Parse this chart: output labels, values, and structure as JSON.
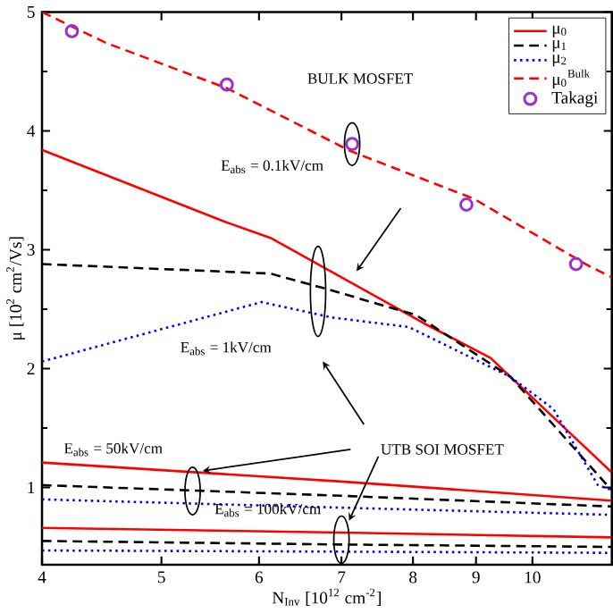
{
  "chart_data": {
    "type": "line",
    "xlabel": "N$_{Inv}$ [10$^{12}$ cm$^{-2}$]",
    "ylabel": "μ [10$^{2}$ cm$^{2}$/Vs]",
    "log": "x",
    "xlim": [
      4,
      11.6
    ],
    "ylim": [
      0.35,
      5
    ],
    "xticks": [
      4,
      5,
      6,
      7,
      8,
      9,
      10
    ],
    "yticks": [
      1,
      2,
      3,
      4,
      5
    ],
    "grid": false,
    "legend": "top right",
    "marker": "none",
    "annotations": [
      "BULK MOSFET",
      "E$_{abs}$ = 0.1kV/cm",
      "E$_{abs}$ = 1kV/cm",
      "UTB SOI MOSFET",
      "E$_{abs}$ = 50kV/cm",
      "E$_{abs}$ = 100kV/cm"
    ],
    "series": [
      {
        "name": "μ$_{0}$",
        "color": "#ff0000",
        "line_style": "solid",
        "x": [
          4,
          5.65,
          6.13,
          8.17,
          9.25,
          9.6,
          11.59
        ],
        "values": [
          3.84,
          3.23,
          3.1,
          2.38,
          2.09,
          1.93,
          1.13
        ]
      },
      {
        "name": "μ$_{1}$",
        "color": "#000000",
        "line_style": "dashed",
        "x": [
          4,
          6.13,
          6.81,
          8.05,
          9.6,
          11.59
        ],
        "values": [
          2.88,
          2.8,
          2.67,
          2.45,
          1.93,
          0.98
        ]
      },
      {
        "name": "μ$_{2}$",
        "color": "#0000ff",
        "line_style": "dotted",
        "x": [
          4,
          6.03,
          6.88,
          7.94,
          9.6,
          10.4,
          11.3,
          11.59
        ],
        "values": [
          2.06,
          2.56,
          2.43,
          2.35,
          1.93,
          1.66,
          1.02,
          0.98
        ]
      },
      {
        "name": "μ$_{0}$$^{Bulk}$",
        "color": "#ff0000",
        "line_style": "dashed",
        "x": [
          4,
          4.51,
          5.65,
          7.12,
          8.96,
          11.13,
          11.59
        ],
        "values": [
          5.0,
          4.74,
          4.36,
          3.83,
          3.43,
          2.86,
          2.77
        ]
      },
      {
        "name": "Takagi",
        "type": "scatter",
        "marker": "circle",
        "color": "#9b30d0",
        "x": [
          4.23,
          5.65,
          7.14,
          8.84,
          10.85
        ],
        "values": [
          4.84,
          4.39,
          3.89,
          3.38,
          2.88
        ]
      },
      {
        "color": "#ff0000",
        "line_style": "solid",
        "x": [
          4,
          7,
          11.59
        ],
        "values": [
          1.21,
          1.05,
          0.89
        ]
      },
      {
        "color": "#000000",
        "line_style": "dashed",
        "x": [
          4,
          7,
          11.59
        ],
        "values": [
          1.02,
          0.93,
          0.84
        ]
      },
      {
        "color": "#0000ff",
        "line_style": "dotted",
        "x": [
          4,
          7,
          11.59
        ],
        "values": [
          0.9,
          0.83,
          0.77
        ]
      },
      {
        "color": "#ff0000",
        "line_style": "solid",
        "x": [
          4,
          7,
          11.59
        ],
        "values": [
          0.66,
          0.62,
          0.58
        ]
      },
      {
        "color": "#000000",
        "line_style": "dashed",
        "x": [
          4,
          7,
          11.59
        ],
        "values": [
          0.55,
          0.52,
          0.5
        ]
      },
      {
        "color": "#0000ff",
        "line_style": "dotted",
        "x": [
          4,
          7,
          11.59
        ],
        "values": [
          0.47,
          0.46,
          0.45
        ]
      }
    ]
  }
}
